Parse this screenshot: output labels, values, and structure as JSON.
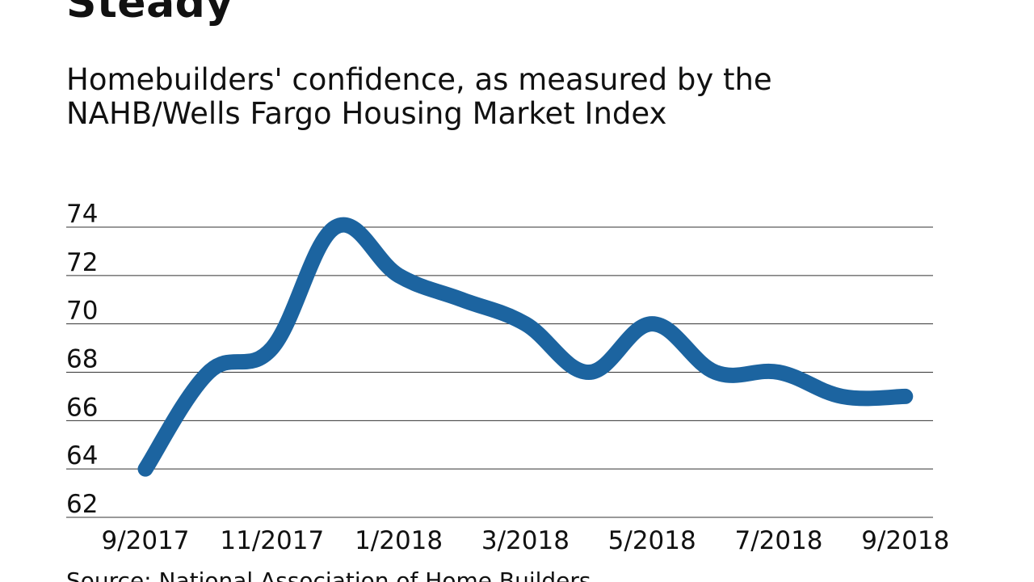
{
  "chart_data": {
    "type": "line",
    "title": "Steady",
    "subtitle": "Homebuilders' confidence, as measured by the NAHB/Wells Fargo Housing Market Index",
    "source": "Source: National Association of Home Builders",
    "xlabel": "",
    "ylabel": "",
    "ylim": [
      62,
      74
    ],
    "yticks": [
      "62",
      "64",
      "66",
      "68",
      "70",
      "72",
      "74"
    ],
    "xtick_labels": [
      "9/2017",
      "11/2017",
      "1/2018",
      "3/2018",
      "5/2018",
      "7/2018",
      "9/2018"
    ],
    "grid": true,
    "series": [
      {
        "name": "Housing Market Index",
        "color": "#1c64a0",
        "x": [
          "9/2017",
          "10/2017",
          "11/2017",
          "12/2017",
          "1/2018",
          "2/2018",
          "3/2018",
          "4/2018",
          "5/2018",
          "6/2018",
          "7/2018",
          "8/2018",
          "9/2018"
        ],
        "values": [
          64,
          68,
          69,
          74,
          72,
          71,
          70,
          68,
          70,
          68,
          68,
          67,
          67
        ]
      }
    ]
  }
}
